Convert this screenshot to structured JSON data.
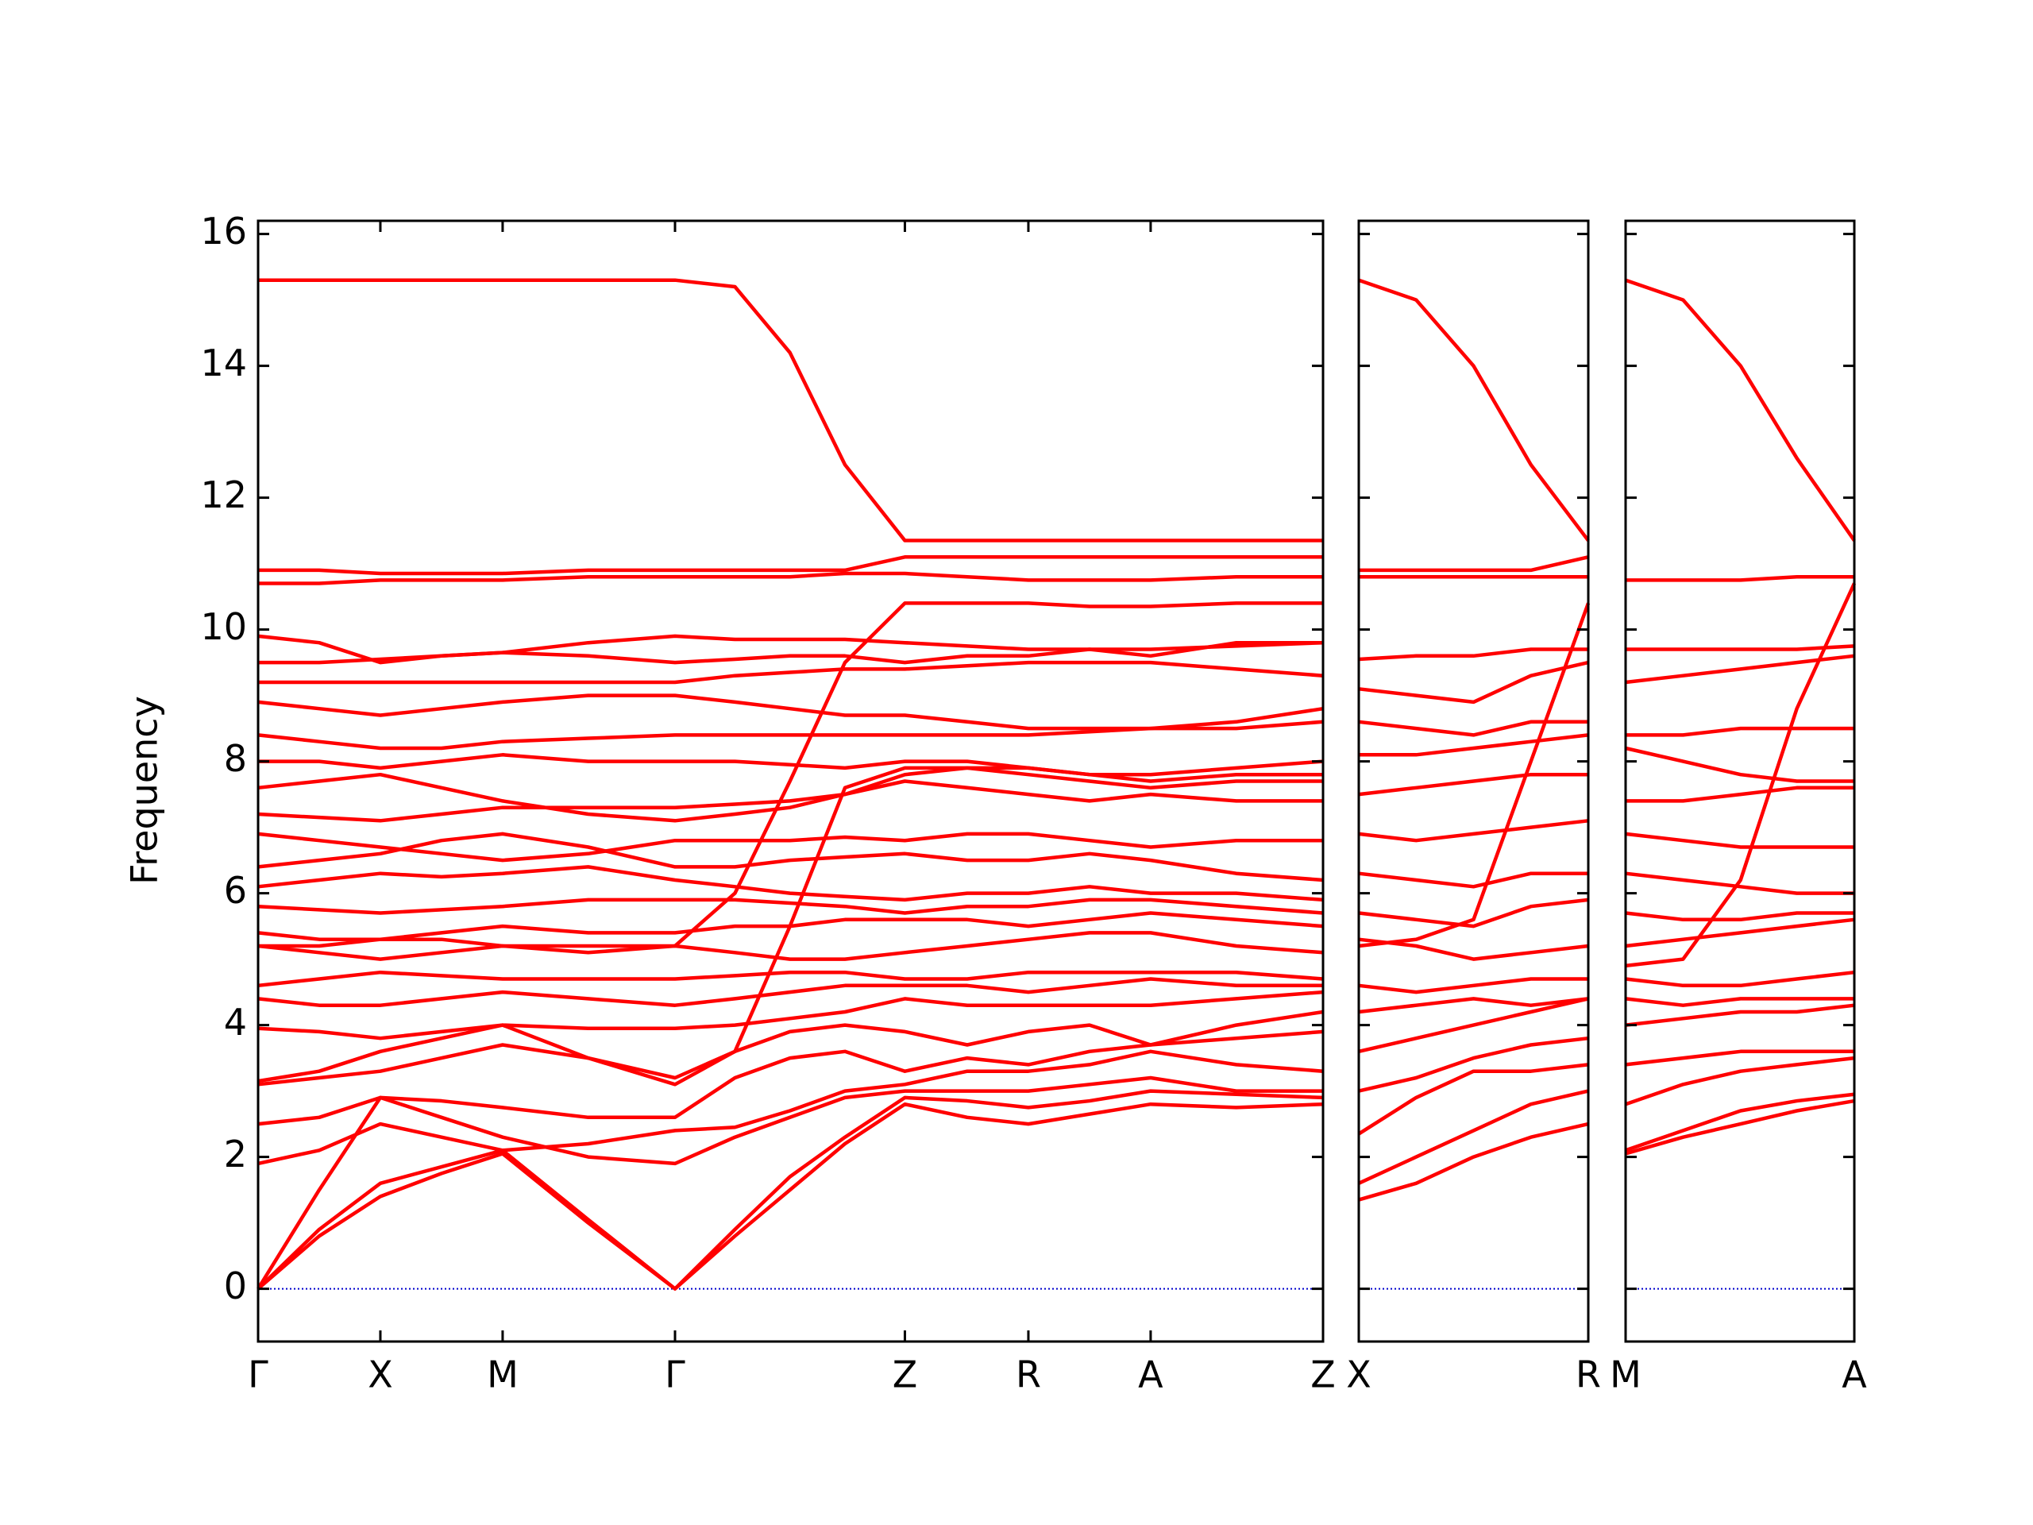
{
  "chart_data": {
    "type": "line",
    "ylabel": "Frequency",
    "ylim": [
      -0.8,
      16.2
    ],
    "yticks": [
      0,
      2,
      4,
      6,
      8,
      10,
      12,
      14,
      16
    ],
    "color": "#ff0000",
    "zero_line_color": "#0000cc",
    "panels": [
      {
        "xlim": [
          0,
          8.71
        ],
        "xticks": [
          {
            "value": 0,
            "label": "Γ"
          },
          {
            "value": 1,
            "label": "X"
          },
          {
            "value": 2,
            "label": "M"
          },
          {
            "value": 3.41,
            "label": "Γ"
          },
          {
            "value": 5.29,
            "label": "Z"
          },
          {
            "value": 6.3,
            "label": "R"
          },
          {
            "value": 7.3,
            "label": "A"
          },
          {
            "value": 8.71,
            "label": "Z"
          }
        ],
        "x": [
          0,
          0.5,
          1,
          1.5,
          2,
          2.7,
          3.41,
          3.9,
          4.35,
          4.8,
          5.29,
          5.8,
          6.3,
          6.8,
          7.3,
          8.0,
          8.71
        ],
        "series": [
          {
            "values": [
              0,
              0.8,
              1.4,
              1.75,
              2.05,
              1.0,
              0,
              0.8,
              1.5,
              2.2,
              2.8,
              2.6,
              2.5,
              2.65,
              2.8,
              2.75,
              2.8
            ]
          },
          {
            "values": [
              0,
              0.9,
              1.6,
              1.85,
              2.1,
              1.05,
              0,
              0.9,
              1.7,
              2.3,
              2.9,
              2.85,
              2.75,
              2.85,
              3.0,
              2.95,
              2.9
            ]
          },
          {
            "values": [
              0,
              1.5,
              2.9,
              2.6,
              2.3,
              2.0,
              1.9,
              2.3,
              2.6,
              2.9,
              3.0,
              3.0,
              3.0,
              3.1,
              3.2,
              3.0,
              3.0
            ]
          },
          {
            "values": [
              1.9,
              2.1,
              2.5,
              2.3,
              2.1,
              2.2,
              2.4,
              2.45,
              2.7,
              3.0,
              3.1,
              3.3,
              3.3,
              3.4,
              3.6,
              3.4,
              3.3
            ]
          },
          {
            "values": [
              2.5,
              2.6,
              2.9,
              2.85,
              2.75,
              2.6,
              2.6,
              3.2,
              3.5,
              3.6,
              3.3,
              3.5,
              3.4,
              3.6,
              3.7,
              3.8,
              3.9
            ]
          },
          {
            "values": [
              3.15,
              3.3,
              3.6,
              3.8,
              4.0,
              3.5,
              3.1,
              3.6,
              3.9,
              4.0,
              3.9,
              3.7,
              3.9,
              4.0,
              3.7,
              4.0,
              4.2
            ]
          },
          {
            "values": [
              3.95,
              3.9,
              3.8,
              3.9,
              4.0,
              3.95,
              3.95,
              4.0,
              4.1,
              4.2,
              4.4,
              4.3,
              4.3,
              4.3,
              4.3,
              4.4,
              4.5
            ]
          },
          {
            "values": [
              4.4,
              4.3,
              4.3,
              4.4,
              4.5,
              4.4,
              4.3,
              4.4,
              4.5,
              4.6,
              4.6,
              4.6,
              4.5,
              4.6,
              4.7,
              4.6,
              4.6
            ]
          },
          {
            "values": [
              4.6,
              4.7,
              4.8,
              4.75,
              4.7,
              4.7,
              4.7,
              4.75,
              4.8,
              4.8,
              4.7,
              4.7,
              4.8,
              4.8,
              4.8,
              4.8,
              4.7
            ]
          },
          {
            "values": [
              5.2,
              5.1,
              5.0,
              5.1,
              5.2,
              5.1,
              5.2,
              5.1,
              5.0,
              5.0,
              5.1,
              5.2,
              5.3,
              5.4,
              5.4,
              5.2,
              5.1
            ]
          },
          {
            "values": [
              5.4,
              5.3,
              5.3,
              5.4,
              5.5,
              5.4,
              5.4,
              5.5,
              5.5,
              5.6,
              5.6,
              5.6,
              5.5,
              5.6,
              5.7,
              5.6,
              5.5
            ]
          },
          {
            "values": [
              5.8,
              5.75,
              5.7,
              5.75,
              5.8,
              5.9,
              5.9,
              5.9,
              5.85,
              5.8,
              5.7,
              5.8,
              5.8,
              5.9,
              5.9,
              5.8,
              5.7
            ]
          },
          {
            "values": [
              6.1,
              6.2,
              6.3,
              6.25,
              6.3,
              6.4,
              6.2,
              6.1,
              6.0,
              5.95,
              5.9,
              6.0,
              6.0,
              6.1,
              6.0,
              6.0,
              5.9
            ]
          },
          {
            "values": [
              6.4,
              6.5,
              6.6,
              6.8,
              6.9,
              6.7,
              6.4,
              6.4,
              6.5,
              6.55,
              6.6,
              6.5,
              6.5,
              6.6,
              6.5,
              6.3,
              6.2
            ]
          },
          {
            "values": [
              6.9,
              6.8,
              6.7,
              6.6,
              6.5,
              6.6,
              6.8,
              6.8,
              6.8,
              6.85,
              6.8,
              6.9,
              6.9,
              6.8,
              6.7,
              6.8,
              6.8
            ]
          },
          {
            "values": [
              7.2,
              7.15,
              7.1,
              7.2,
              7.3,
              7.3,
              7.3,
              7.35,
              7.4,
              7.5,
              7.7,
              7.6,
              7.5,
              7.4,
              7.5,
              7.4,
              7.4
            ]
          },
          {
            "values": [
              7.6,
              7.7,
              7.8,
              7.6,
              7.4,
              7.2,
              7.1,
              7.2,
              7.3,
              7.5,
              7.8,
              7.9,
              7.9,
              7.8,
              7.7,
              7.8,
              7.8
            ]
          },
          {
            "values": [
              8.0,
              8.0,
              7.9,
              8.0,
              8.1,
              8.0,
              8.0,
              8.0,
              7.95,
              7.9,
              8.0,
              8.0,
              7.9,
              7.8,
              7.8,
              7.9,
              8.0
            ]
          },
          {
            "values": [
              8.4,
              8.3,
              8.2,
              8.2,
              8.3,
              8.35,
              8.4,
              8.4,
              8.4,
              8.4,
              8.4,
              8.4,
              8.4,
              8.45,
              8.5,
              8.5,
              8.6
            ]
          },
          {
            "values": [
              8.9,
              8.8,
              8.7,
              8.8,
              8.9,
              9.0,
              9.0,
              8.9,
              8.8,
              8.7,
              8.7,
              8.6,
              8.5,
              8.5,
              8.5,
              8.6,
              8.8
            ]
          },
          {
            "values": [
              9.2,
              9.2,
              9.2,
              9.2,
              9.2,
              9.2,
              9.2,
              9.3,
              9.35,
              9.4,
              9.4,
              9.45,
              9.5,
              9.5,
              9.5,
              9.4,
              9.3
            ]
          },
          {
            "values": [
              9.5,
              9.5,
              9.55,
              9.6,
              9.65,
              9.6,
              9.5,
              9.55,
              9.6,
              9.6,
              9.5,
              9.6,
              9.6,
              9.7,
              9.7,
              9.75,
              9.8
            ]
          },
          {
            "values": [
              9.9,
              9.8,
              9.5,
              9.6,
              9.65,
              9.8,
              9.9,
              9.85,
              9.85,
              9.85,
              9.8,
              9.75,
              9.7,
              9.7,
              9.6,
              9.8,
              9.8
            ]
          },
          {
            "values": [
              10.7,
              10.7,
              10.75,
              10.75,
              10.75,
              10.8,
              10.8,
              10.8,
              10.8,
              10.85,
              10.85,
              10.8,
              10.75,
              10.75,
              10.75,
              10.8,
              10.8
            ]
          },
          {
            "values": [
              10.9,
              10.9,
              10.85,
              10.85,
              10.85,
              10.9,
              10.9,
              10.9,
              10.9,
              10.9,
              11.1,
              11.1,
              11.1,
              11.1,
              11.1,
              11.1,
              11.1
            ]
          },
          {
            "values": [
              5.2,
              5.2,
              5.3,
              5.3,
              5.2,
              5.2,
              5.2,
              6.0,
              7.7,
              9.5,
              10.4,
              10.4,
              10.4,
              10.35,
              10.35,
              10.4,
              10.4
            ]
          },
          {
            "values": [
              3.1,
              3.2,
              3.3,
              3.5,
              3.7,
              3.5,
              3.2,
              3.6,
              5.5,
              7.6,
              7.9,
              7.9,
              7.8,
              7.7,
              7.6,
              7.7,
              7.7
            ]
          },
          {
            "values": [
              15.3,
              15.3,
              15.3,
              15.3,
              15.3,
              15.3,
              15.3,
              15.2,
              14.2,
              12.5,
              11.35,
              11.35,
              11.35,
              11.35,
              11.35,
              11.35,
              11.35
            ]
          }
        ]
      },
      {
        "xlim": [
          0,
          1.88
        ],
        "xticks": [
          {
            "value": 0,
            "label": "X"
          },
          {
            "value": 1.88,
            "label": "R"
          }
        ],
        "x": [
          0,
          0.47,
          0.94,
          1.41,
          1.88
        ],
        "series": [
          {
            "values": [
              1.35,
              1.6,
              2.0,
              2.3,
              2.5
            ]
          },
          {
            "values": [
              1.6,
              2.0,
              2.4,
              2.8,
              3.0
            ]
          },
          {
            "values": [
              2.35,
              2.9,
              3.3,
              3.3,
              3.4
            ]
          },
          {
            "values": [
              3.0,
              3.2,
              3.5,
              3.7,
              3.8
            ]
          },
          {
            "values": [
              3.6,
              3.8,
              4.0,
              4.2,
              4.4
            ]
          },
          {
            "values": [
              4.2,
              4.3,
              4.4,
              4.3,
              4.4
            ]
          },
          {
            "values": [
              4.6,
              4.5,
              4.6,
              4.7,
              4.7
            ]
          },
          {
            "values": [
              5.3,
              5.2,
              5.0,
              5.1,
              5.2
            ]
          },
          {
            "values": [
              5.7,
              5.6,
              5.5,
              5.8,
              5.9
            ]
          },
          {
            "values": [
              6.3,
              6.2,
              6.1,
              6.3,
              6.3
            ]
          },
          {
            "values": [
              6.9,
              6.8,
              6.9,
              7.0,
              7.1
            ]
          },
          {
            "values": [
              7.5,
              7.6,
              7.7,
              7.8,
              7.8
            ]
          },
          {
            "values": [
              8.1,
              8.1,
              8.2,
              8.3,
              8.4
            ]
          },
          {
            "values": [
              8.6,
              8.5,
              8.4,
              8.6,
              8.6
            ]
          },
          {
            "values": [
              9.1,
              9.0,
              8.9,
              9.3,
              9.5
            ]
          },
          {
            "values": [
              9.55,
              9.6,
              9.6,
              9.7,
              9.7
            ]
          },
          {
            "values": [
              10.8,
              10.8,
              10.8,
              10.8,
              10.8
            ]
          },
          {
            "values": [
              10.9,
              10.9,
              10.9,
              10.9,
              11.1
            ]
          },
          {
            "values": [
              5.2,
              5.3,
              5.6,
              8.0,
              10.4
            ]
          },
          {
            "values": [
              15.3,
              15.0,
              14.0,
              12.5,
              11.35
            ]
          }
        ]
      },
      {
        "xlim": [
          0,
          1.87
        ],
        "xticks": [
          {
            "value": 0,
            "label": "M"
          },
          {
            "value": 1.87,
            "label": "A"
          }
        ],
        "x": [
          0,
          0.47,
          0.94,
          1.4,
          1.87
        ],
        "series": [
          {
            "values": [
              2.05,
              2.3,
              2.5,
              2.7,
              2.85
            ]
          },
          {
            "values": [
              2.1,
              2.4,
              2.7,
              2.85,
              2.95
            ]
          },
          {
            "values": [
              2.8,
              3.1,
              3.3,
              3.4,
              3.5
            ]
          },
          {
            "values": [
              3.4,
              3.5,
              3.6,
              3.6,
              3.6
            ]
          },
          {
            "values": [
              4.0,
              4.1,
              4.2,
              4.2,
              4.3
            ]
          },
          {
            "values": [
              4.4,
              4.3,
              4.4,
              4.4,
              4.4
            ]
          },
          {
            "values": [
              4.7,
              4.6,
              4.6,
              4.7,
              4.8
            ]
          },
          {
            "values": [
              5.2,
              5.3,
              5.4,
              5.5,
              5.6
            ]
          },
          {
            "values": [
              5.7,
              5.6,
              5.6,
              5.7,
              5.7
            ]
          },
          {
            "values": [
              6.3,
              6.2,
              6.1,
              6.0,
              6.0
            ]
          },
          {
            "values": [
              6.9,
              6.8,
              6.7,
              6.7,
              6.7
            ]
          },
          {
            "values": [
              7.4,
              7.4,
              7.5,
              7.6,
              7.6
            ]
          },
          {
            "values": [
              8.2,
              8.0,
              7.8,
              7.7,
              7.7
            ]
          },
          {
            "values": [
              8.4,
              8.4,
              8.5,
              8.5,
              8.5
            ]
          },
          {
            "values": [
              9.2,
              9.3,
              9.4,
              9.5,
              9.6
            ]
          },
          {
            "values": [
              9.7,
              9.7,
              9.7,
              9.7,
              9.75
            ]
          },
          {
            "values": [
              10.75,
              10.75,
              10.75,
              10.8,
              10.8
            ]
          },
          {
            "values": [
              4.9,
              5.0,
              6.2,
              8.8,
              10.7
            ]
          },
          {
            "values": [
              15.3,
              15.0,
              14.0,
              12.6,
              11.35
            ]
          }
        ]
      }
    ]
  }
}
